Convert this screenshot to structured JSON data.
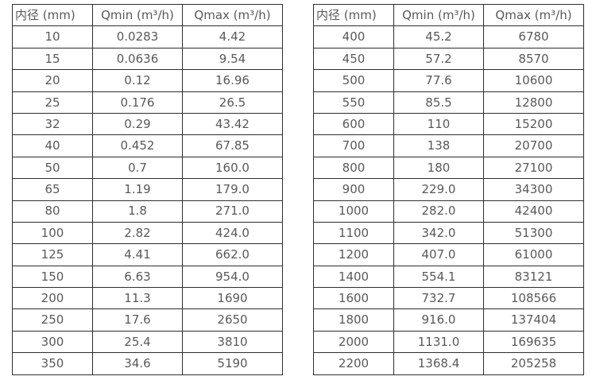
{
  "page": {
    "background_color": "#ffffff",
    "text_color": "#595959",
    "border_color": "#2e2e2e"
  },
  "chart_data": [
    {
      "type": "table",
      "columns": [
        "内径 (mm)",
        "Qmin (m³/h)",
        "Qmax (m³/h)"
      ],
      "rows": [
        [
          "10",
          "0.0283",
          "4.42"
        ],
        [
          "15",
          "0.0636",
          "9.54"
        ],
        [
          "20",
          "0.12",
          "16.96"
        ],
        [
          "25",
          "0.176",
          "26.5"
        ],
        [
          "32",
          "0.29",
          "43.42"
        ],
        [
          "40",
          "0.452",
          "67.85"
        ],
        [
          "50",
          "0.7",
          "160.0"
        ],
        [
          "65",
          "1.19",
          "179.0"
        ],
        [
          "80",
          "1.8",
          "271.0"
        ],
        [
          "100",
          "2.82",
          "424.0"
        ],
        [
          "125",
          "4.41",
          "662.0"
        ],
        [
          "150",
          "6.63",
          "954.0"
        ],
        [
          "200",
          "11.3",
          "1690"
        ],
        [
          "250",
          "17.6",
          "2650"
        ],
        [
          "300",
          "25.4",
          "3810"
        ],
        [
          "350",
          "34.6",
          "5190"
        ]
      ]
    },
    {
      "type": "table",
      "columns": [
        "内径 (mm)",
        "Qmin (m³/h)",
        "Qmax (m³/h)"
      ],
      "rows": [
        [
          "400",
          "45.2",
          "6780"
        ],
        [
          "450",
          "57.2",
          "8570"
        ],
        [
          "500",
          "77.6",
          "10600"
        ],
        [
          "550",
          "85.5",
          "12800"
        ],
        [
          "600",
          "110",
          "15200"
        ],
        [
          "700",
          "138",
          "20700"
        ],
        [
          "800",
          "180",
          "27100"
        ],
        [
          "900",
          "229.0",
          "34300"
        ],
        [
          "1000",
          "282.0",
          "42400"
        ],
        [
          "1100",
          "342.0",
          "51300"
        ],
        [
          "1200",
          "407.0",
          "61000"
        ],
        [
          "1400",
          "554.1",
          "83121"
        ],
        [
          "1600",
          "732.7",
          "108566"
        ],
        [
          "1800",
          "916.0",
          "137404"
        ],
        [
          "2000",
          "1131.0",
          "169635"
        ],
        [
          "2200",
          "1368.4",
          "205258"
        ]
      ]
    }
  ]
}
